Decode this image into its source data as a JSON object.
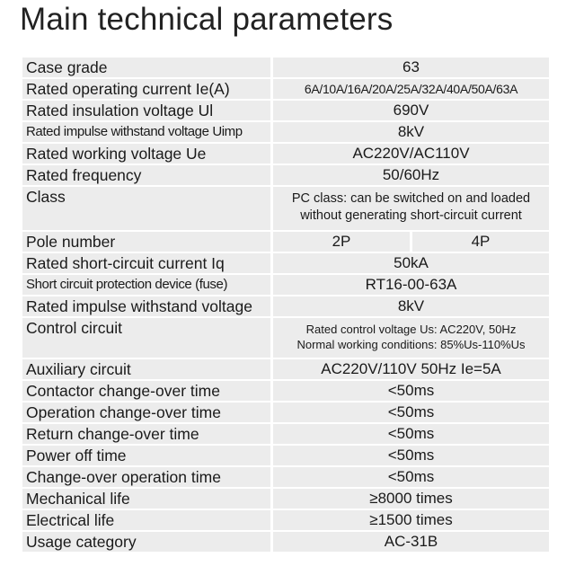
{
  "title": "Main technical parameters",
  "rows": [
    {
      "label": "Case  grade",
      "value": "63"
    },
    {
      "label": "Rated operating current Ie(A)",
      "value": "6A/10A/16A/20A/25A/32A/40A/50A/63A"
    },
    {
      "label": "Rated insulation voltage Ul",
      "value": "690V"
    },
    {
      "label": "Rated impulse withstand voltage Uimp",
      "value": "8kV"
    },
    {
      "label": "Rated working voltage Ue",
      "value": "AC220V/AC110V"
    },
    {
      "label": "Rated frequency",
      "value": "50/60Hz"
    },
    {
      "label": "Class",
      "value_lines": [
        "PC class: can be switched on and loaded",
        "without generating short-circuit current"
      ]
    },
    {
      "label": "Pole number",
      "values": [
        "2P",
        "4P"
      ]
    },
    {
      "label": "Rated short-circuit current Iq",
      "value": "50kA"
    },
    {
      "label": "Short circuit protection device (fuse)",
      "value": "RT16-00-63A"
    },
    {
      "label": "Rated impulse withstand voltage",
      "value": "8kV"
    },
    {
      "label": "Control circuit",
      "value_lines": [
        "Rated control voltage Us: AC220V, 50Hz",
        "Normal working conditions: 85%Us-110%Us"
      ]
    },
    {
      "label": "Auxiliary circuit",
      "value": "AC220V/110V  50Hz Ie=5A"
    },
    {
      "label": "Contactor change-over time",
      "value": "<50ms"
    },
    {
      "label": "Operation change-over time",
      "value": "<50ms"
    },
    {
      "label": "Return change-over time",
      "value": "<50ms"
    },
    {
      "label": "Power off time",
      "value": "<50ms"
    },
    {
      "label": "Change-over operation time",
      "value": "<50ms"
    },
    {
      "label": "Mechanical life",
      "value": "≥8000  times"
    },
    {
      "label": "Electrical life",
      "value": "≥1500 times"
    },
    {
      "label": "Usage category",
      "value": "AC-31B"
    }
  ]
}
